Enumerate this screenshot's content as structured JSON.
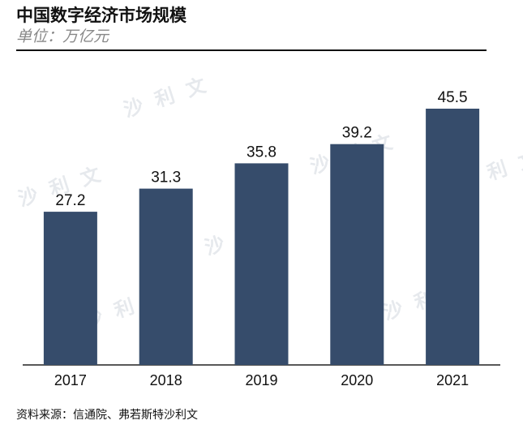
{
  "header": {
    "title": "中国数字经济市场规模",
    "unit": "单位：万亿元"
  },
  "footer": {
    "source": "资料来源：信通院、弗若斯特沙利文"
  },
  "watermark": {
    "text": "沙 利 文"
  },
  "colors": {
    "bar": "#364c6b",
    "axis": "#222222",
    "text": "#111111"
  },
  "chart_data": {
    "type": "bar",
    "categories": [
      "2017",
      "2018",
      "2019",
      "2020",
      "2021"
    ],
    "values": [
      27.2,
      31.3,
      35.8,
      39.2,
      45.5
    ],
    "data_labels": [
      "27.2",
      "31.3",
      "35.8",
      "39.2",
      "45.5"
    ],
    "title": "中国数字经济市场规模",
    "ylabel": "单位：万亿元",
    "xlabel": "",
    "ylim": [
      0,
      55
    ],
    "grid": false,
    "legend": "none"
  }
}
